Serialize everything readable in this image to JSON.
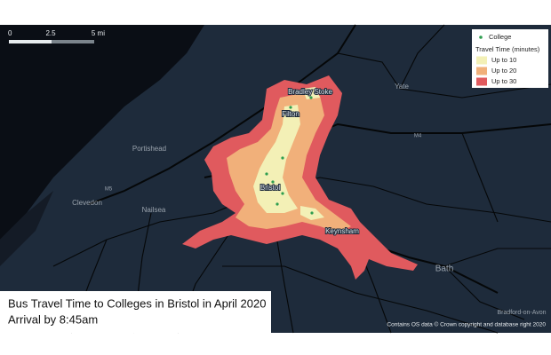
{
  "map": {
    "scale_bar": {
      "labels": [
        "0",
        "2.5",
        "5 mi"
      ]
    },
    "legend": {
      "college": {
        "label": "College",
        "color": "#2e9e4f"
      },
      "title": "Travel Time (minutes)",
      "items": [
        {
          "label": "Up to 10",
          "color": "#f3f0b6"
        },
        {
          "label": "Up to 20",
          "color": "#f1b07a"
        },
        {
          "label": "Up to 30",
          "color": "#e05a5e"
        }
      ]
    },
    "places": [
      "Bradley Stoke",
      "Filton",
      "Yate",
      "Portishead",
      "M4",
      "M5",
      "Bristol",
      "Clevedon",
      "Nailsea",
      "Keynsham",
      "Bath",
      "Bradford-on-Avon"
    ],
    "title": {
      "line1": "Bus Travel Time to Colleges in Bristol in April 2020",
      "line2": "Arrival by 8:45am"
    },
    "attribution": "Contains OS data © Crown copyright and database right 2020"
  }
}
